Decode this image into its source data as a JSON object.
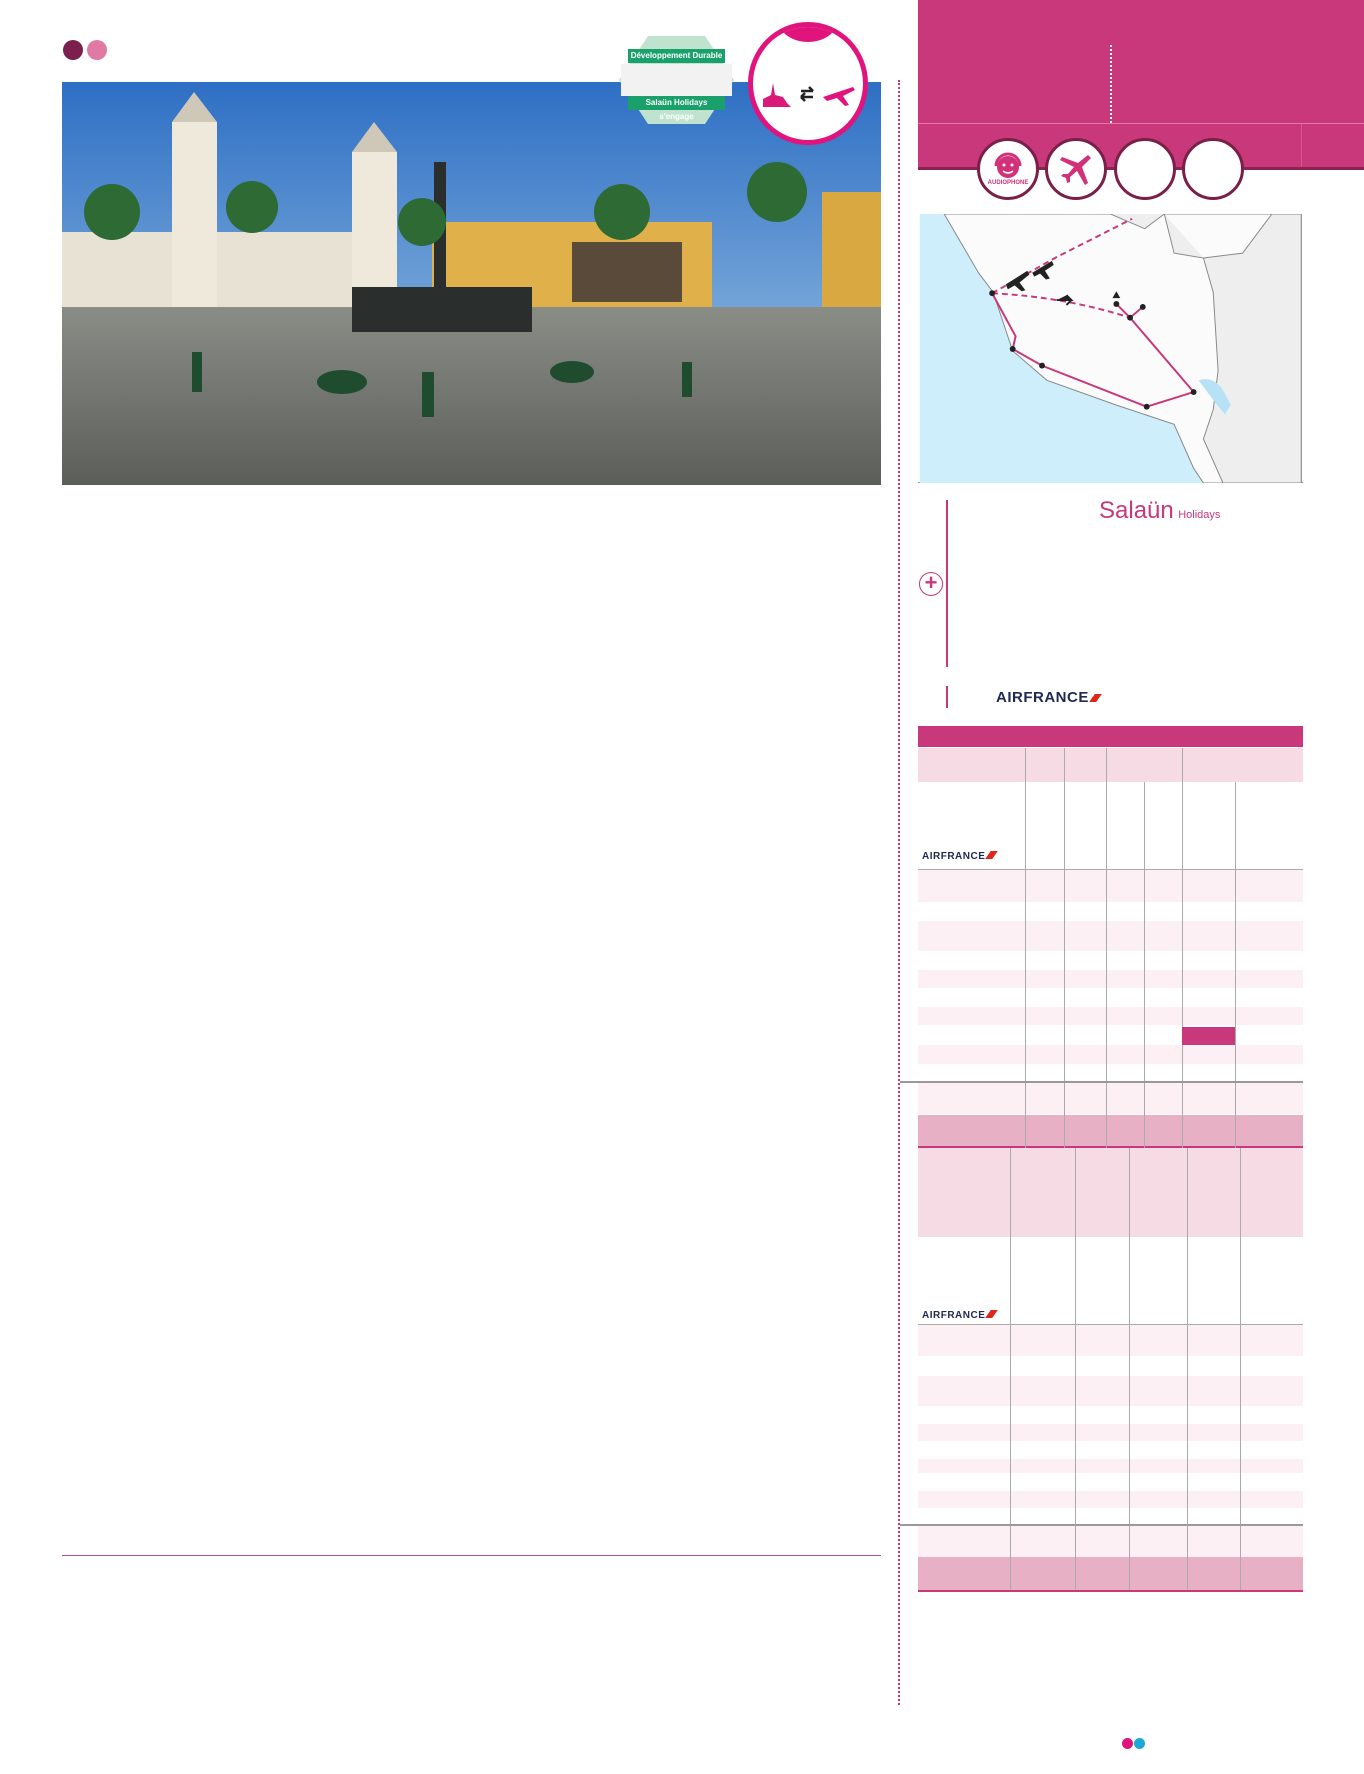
{
  "header_dots": {
    "colors": [
      "#7a1f4e",
      "#e07aa5"
    ]
  },
  "badges": {
    "sustainability": {
      "top_label": "Développement Durable",
      "bottom_label": "Salaün Holidays s'engage"
    },
    "transport_icon": "city-exchange-plane-icon"
  },
  "feature_icons": [
    {
      "icon": "audiophone-icon",
      "label": "AUDIOPHONE"
    },
    {
      "icon": "plane-icon"
    },
    {
      "icon": "empty"
    },
    {
      "icon": "empty"
    }
  ],
  "partners": {
    "salaun": {
      "brand": "Salaün",
      "suffix": "Holidays"
    },
    "airline": "AIRFRANCE"
  },
  "tables": [
    {
      "airline": "AIRFRANCE",
      "highlight_color": "#c8387a"
    },
    {
      "airline": "AIRFRANCE"
    }
  ],
  "colors": {
    "accent": "#c8387a",
    "light_pink": "#f6dbe4",
    "mid_pink": "#e8b0c4",
    "footer_dots": [
      "#e0147c",
      "#1ba8d8"
    ]
  }
}
